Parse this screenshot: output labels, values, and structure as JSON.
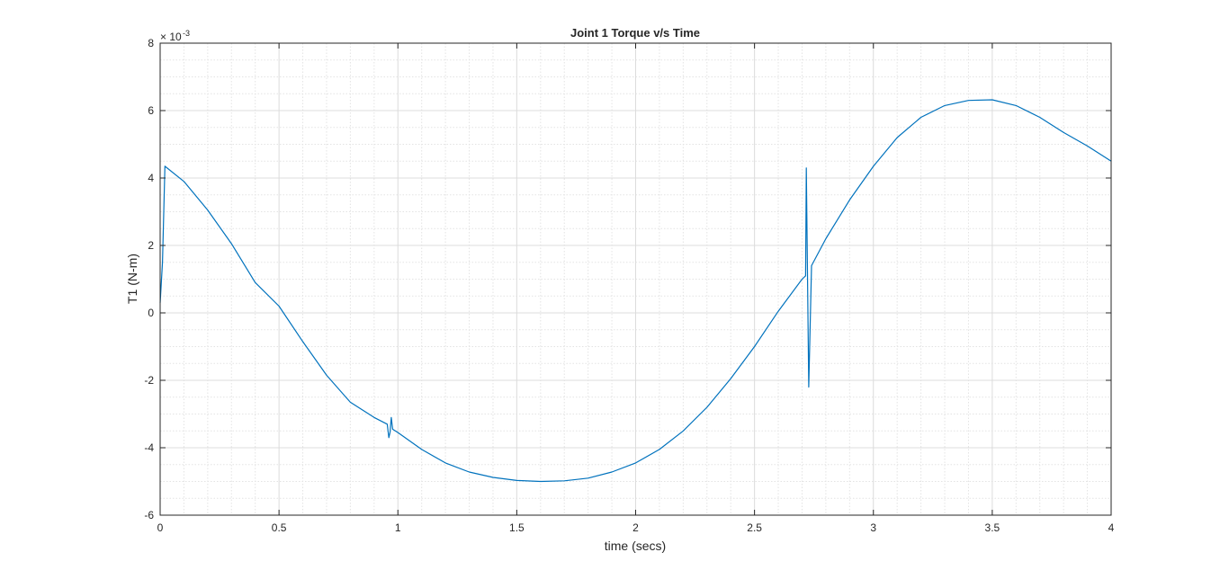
{
  "chart_data": {
    "type": "line",
    "title": "Joint 1 Torque v/s Time",
    "xlabel": "time (secs)",
    "ylabel": "T1 (N-m)",
    "y_exponent_base": "× 10",
    "y_exponent_power": "-3",
    "xlim": [
      0,
      4
    ],
    "ylim": [
      -6,
      8
    ],
    "x_ticks": [
      0,
      0.5,
      1,
      1.5,
      2,
      2.5,
      3,
      3.5,
      4
    ],
    "x_tick_labels": [
      "0",
      "0.5",
      "1",
      "1.5",
      "2",
      "2.5",
      "3",
      "3.5",
      "4"
    ],
    "y_ticks": [
      -6,
      -4,
      -2,
      0,
      2,
      4,
      6,
      8
    ],
    "y_tick_labels": [
      "-6",
      "-4",
      "-2",
      "0",
      "2",
      "4",
      "6",
      "8"
    ],
    "grid": true,
    "minor_grid": true,
    "box": true,
    "series": [
      {
        "color": "#0072BD",
        "x": [
          0.0,
          0.01,
          0.02,
          0.1,
          0.2,
          0.3,
          0.4,
          0.5,
          0.6,
          0.7,
          0.8,
          0.9,
          0.955,
          0.962,
          0.967,
          0.972,
          0.978,
          1.0,
          1.1,
          1.2,
          1.3,
          1.4,
          1.5,
          1.6,
          1.7,
          1.8,
          1.9,
          2.0,
          2.1,
          2.2,
          2.3,
          2.4,
          2.5,
          2.6,
          2.7,
          2.715,
          2.718,
          2.728,
          2.74,
          2.8,
          2.9,
          3.0,
          3.1,
          3.2,
          3.3,
          3.4,
          3.5,
          3.6,
          3.7,
          3.8,
          3.9,
          4.0
        ],
        "y": [
          0.3,
          1.5,
          4.35,
          3.9,
          3.05,
          2.05,
          0.9,
          0.2,
          -0.85,
          -1.85,
          -2.65,
          -3.1,
          -3.3,
          -3.7,
          -3.55,
          -3.1,
          -3.45,
          -3.55,
          -4.05,
          -4.45,
          -4.72,
          -4.88,
          -4.97,
          -5.0,
          -4.98,
          -4.9,
          -4.72,
          -4.45,
          -4.05,
          -3.5,
          -2.8,
          -1.95,
          -1.0,
          0.05,
          1.0,
          1.1,
          4.3,
          -2.2,
          1.4,
          2.2,
          3.35,
          4.35,
          5.2,
          5.8,
          6.15,
          6.3,
          6.32,
          6.15,
          5.8,
          5.35,
          4.95,
          4.5
        ]
      }
    ]
  }
}
